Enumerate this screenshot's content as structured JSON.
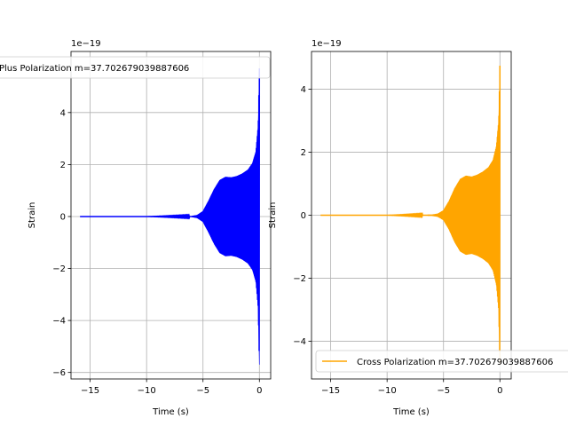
{
  "chart_data": [
    {
      "type": "line",
      "title": "",
      "xlabel": "Time (s)",
      "ylabel": "Strain",
      "y_offset_label": "1e−19",
      "xlim": [
        -16.7,
        1.0
      ],
      "ylim": [
        -6.25,
        6.35
      ],
      "xticks": [
        -15,
        -10,
        -5,
        0
      ],
      "xtick_labels": [
        "−15",
        "−10",
        "−5",
        "0"
      ],
      "yticks": [
        -6,
        -4,
        -2,
        0,
        2,
        4
      ],
      "ytick_labels": [
        "−6",
        "−4",
        "−2",
        "0",
        "2",
        "4"
      ],
      "grid": true,
      "legend_position": "top",
      "series": [
        {
          "name": "Plus Polarization m=37.702679039887606",
          "color": "#0000ff",
          "envelope": {
            "t": [
              -15.9,
              -10,
              -6,
              -5.5,
              -5,
              -4.5,
              -4,
              -3.5,
              -3,
              -2.5,
              -2,
              -1.5,
              -1,
              -0.6,
              -0.3,
              -0.1,
              -0.03,
              0
            ],
            "amp": [
              0,
              0,
              0.02,
              0.06,
              0.2,
              0.6,
              1.05,
              1.4,
              1.52,
              1.5,
              1.55,
              1.65,
              1.8,
              2.05,
              2.5,
              3.5,
              5.0,
              5.7
            ]
          }
        }
      ]
    },
    {
      "type": "line",
      "title": "",
      "xlabel": "Time (s)",
      "ylabel": "Strain",
      "y_offset_label": "1e−19",
      "xlim": [
        -16.7,
        1.0
      ],
      "ylim": [
        -5.2,
        5.2
      ],
      "xticks": [
        -15,
        -10,
        -5,
        0
      ],
      "xtick_labels": [
        "−15",
        "−10",
        "−5",
        "0"
      ],
      "yticks": [
        -4,
        -2,
        0,
        2,
        4
      ],
      "ytick_labels": [
        "−4",
        "−2",
        "0",
        "2",
        "4"
      ],
      "grid": true,
      "legend_position": "lower right",
      "series": [
        {
          "name": "Cross Polarization m=37.702679039887606",
          "color": "#ffa500",
          "envelope": {
            "t": [
              -15.9,
              -10,
              -6,
              -5.5,
              -5,
              -4.5,
              -4,
              -3.5,
              -3,
              -2.5,
              -2,
              -1.5,
              -1,
              -0.6,
              -0.3,
              -0.1,
              -0.03,
              0
            ],
            "amp": [
              0,
              0,
              0.02,
              0.05,
              0.15,
              0.45,
              0.85,
              1.15,
              1.25,
              1.22,
              1.28,
              1.38,
              1.52,
              1.75,
              2.2,
              3.0,
              4.2,
              4.75
            ]
          }
        }
      ]
    }
  ]
}
